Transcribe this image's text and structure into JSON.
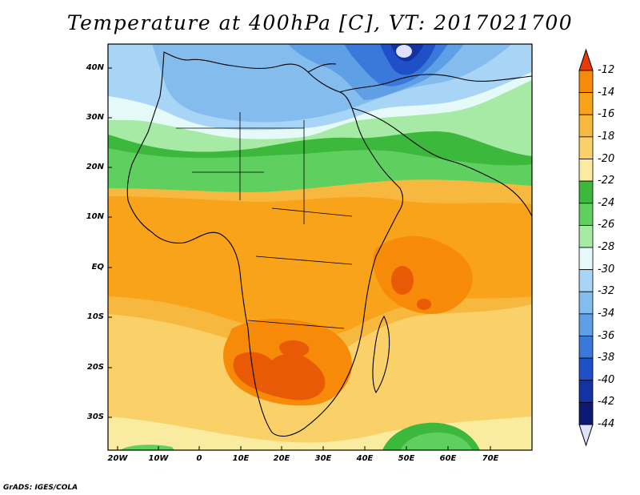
{
  "title": "Temperature at 400hPa [C], VT: 2017021700",
  "credit": "GrADS: IGES/COLA",
  "lat_labels": [
    "40N",
    "30N",
    "20N",
    "10N",
    "EQ",
    "10S",
    "20S",
    "30S"
  ],
  "lon_labels": [
    "20W",
    "10W",
    "0",
    "10E",
    "20E",
    "30E",
    "40E",
    "50E",
    "60E",
    "70E"
  ],
  "colorbar": {
    "labels": [
      "-12",
      "-14",
      "-16",
      "-18",
      "-20",
      "-22",
      "-24",
      "-26",
      "-28",
      "-30",
      "-32",
      "-34",
      "-36",
      "-38",
      "-40",
      "-42",
      "-44"
    ],
    "colors": [
      "#e85a05",
      "#f88a0a",
      "#f9a31a",
      "#f7b840",
      "#f9d168",
      "#f9eba0",
      "#3cb83c",
      "#5fd05f",
      "#a6eaa6",
      "#e5f9f9",
      "#a8d5f5",
      "#84bcee",
      "#5f9fe6",
      "#3a78d9",
      "#2050c8",
      "#1332a4",
      "#0d1a73"
    ],
    "top_arrow_color": "#e83a05",
    "bottom_arrow_color": "#e0e0ff"
  },
  "colors": {
    "warm_max": "#e85a05",
    "orange": "#f88a0a",
    "light_orange": "#f9a31a",
    "yellow_orange": "#f7b840",
    "light_yellow": "#f9d168",
    "pale_yellow": "#f9eba0",
    "green": "#3cb83c",
    "mid_green": "#5fd05f",
    "light_green": "#a6eaa6",
    "pale_cyan": "#e5f9f9",
    "light_blue": "#a8d5f5",
    "blue": "#84bcee",
    "deep_blue": "#3a78d9",
    "navy": "#0d1a73"
  }
}
